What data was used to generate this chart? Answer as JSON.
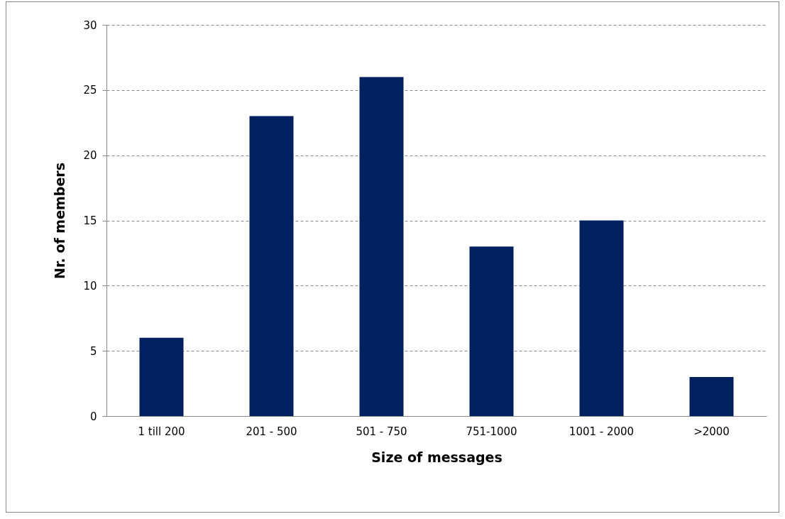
{
  "chart_data": {
    "type": "bar",
    "xlabel": "Size of messages",
    "ylabel": "Nr. of members",
    "categories": [
      "1 till 200",
      "201 - 500",
      "501 - 750",
      "751-1000",
      "1001 - 2000",
      ">2000"
    ],
    "values": [
      6,
      23,
      26,
      13,
      15,
      3
    ],
    "color": "#002060",
    "ylim": [
      0,
      30
    ],
    "yticks": [
      0,
      5,
      10,
      15,
      20,
      25,
      30
    ],
    "grid": "y"
  }
}
